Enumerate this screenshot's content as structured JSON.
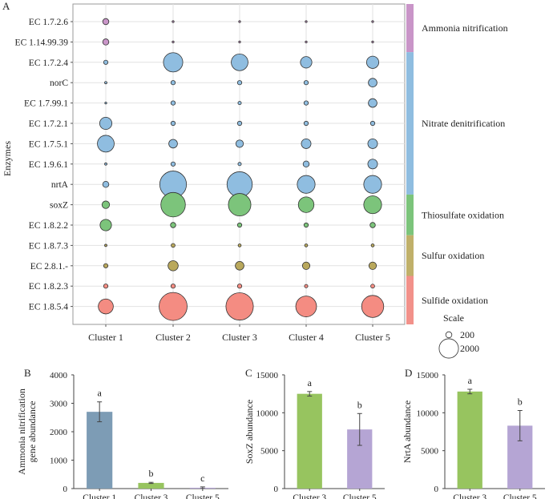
{
  "chart_data": [
    {
      "type": "scatter",
      "panel": "A",
      "ylabel": "Enzymes",
      "clusters": [
        "Cluster 1",
        "Cluster 2",
        "Cluster 3",
        "Cluster 4",
        "Cluster 5"
      ],
      "enzymes": [
        "EC 1.7.2.6",
        "EC 1.14.99.39",
        "EC 1.7.2.4",
        "norC",
        "EC 1.7.99.1",
        "EC 1.7.2.1",
        "EC 1.7.5.1",
        "EC 1.9.6.1",
        "nrtA",
        "soxZ",
        "EC 1.8.2.2",
        "EC 1.8.7.3",
        "EC 2.8.1.-",
        "EC 1.8.2.3",
        "EC 1.8.5.4"
      ],
      "values": [
        [
          200,
          20,
          10,
          3,
          3
        ],
        [
          200,
          20,
          10,
          3,
          3
        ],
        [
          100,
          2000,
          1500,
          700,
          800
        ],
        [
          30,
          100,
          100,
          100,
          400
        ],
        [
          20,
          100,
          60,
          100,
          400
        ],
        [
          800,
          100,
          100,
          100,
          100
        ],
        [
          1500,
          400,
          300,
          500,
          500
        ],
        [
          30,
          100,
          60,
          200,
          500
        ],
        [
          200,
          3800,
          3400,
          1700,
          1700
        ],
        [
          300,
          3200,
          2700,
          1300,
          1700
        ],
        [
          700,
          150,
          100,
          100,
          150
        ],
        [
          30,
          80,
          50,
          50,
          50
        ],
        [
          100,
          550,
          400,
          300,
          300
        ],
        [
          100,
          100,
          100,
          60,
          80
        ],
        [
          1200,
          4200,
          4000,
          2300,
          2600
        ]
      ],
      "groups": [
        {
          "label": "Ammonia nitrification",
          "from": 0,
          "to": 1,
          "color": "#c995c8"
        },
        {
          "label": "Nitrate denitrification",
          "from": 2,
          "to": 8,
          "color": "#8fbde0"
        },
        {
          "label": "Thiosulfate oxidation",
          "from": 9,
          "to": 10,
          "color": "#7cc47b"
        },
        {
          "label": "Sulfur oxidation",
          "from": 11,
          "to": 12,
          "color": "#c0b06a"
        },
        {
          "label": "Sulfide oxidation",
          "from": 13,
          "to": 14,
          "color": "#f2918a"
        }
      ],
      "row_colors": [
        "#c995c8",
        "#c995c8",
        "#8fbde0",
        "#8fbde0",
        "#8fbde0",
        "#8fbde0",
        "#8fbde0",
        "#8fbde0",
        "#8fbde0",
        "#7cc47b",
        "#7cc47b",
        "#b9a85c",
        "#b9a85c",
        "#f48c82",
        "#f48c82"
      ],
      "legend": {
        "title": "Scale",
        "entries": [
          {
            "label": "200",
            "value": 200
          },
          {
            "label": "2000",
            "value": 2000
          }
        ]
      }
    },
    {
      "type": "bar",
      "panel": "B",
      "categories": [
        "Cluster 1",
        "Cluster 3",
        "Cluster 5"
      ],
      "values": [
        2700,
        200,
        30
      ],
      "errors": [
        350,
        20,
        30
      ],
      "letters": [
        "a",
        "b",
        "c"
      ],
      "colors": [
        "#7d9cb5",
        "#97c45f",
        "#b5a5d4"
      ],
      "ylabel": "Ammonia nitrification gene abundance",
      "ylabel_lines": [
        "Ammonia nitrification",
        "gene abundance"
      ],
      "ylim": [
        0,
        4000
      ],
      "yticks": [
        0,
        1000,
        2000,
        3000,
        4000
      ]
    },
    {
      "type": "bar",
      "panel": "C",
      "categories": [
        "Cluster 3",
        "Cluster 5"
      ],
      "values": [
        12500,
        7800
      ],
      "errors": [
        300,
        2100
      ],
      "letters": [
        "a",
        "b"
      ],
      "colors": [
        "#97c45f",
        "#b5a5d4"
      ],
      "ylabel": "SoxZ abundance",
      "ylim": [
        0,
        15000
      ],
      "yticks": [
        0,
        5000,
        10000,
        15000
      ]
    },
    {
      "type": "bar",
      "panel": "D",
      "categories": [
        "Cluster 3",
        "Cluster 5"
      ],
      "values": [
        12800,
        8300
      ],
      "errors": [
        300,
        2000
      ],
      "letters": [
        "a",
        "b"
      ],
      "colors": [
        "#97c45f",
        "#b5a5d4"
      ],
      "ylabel": "NrtA abundance",
      "ylim": [
        0,
        15000
      ],
      "yticks": [
        0,
        5000,
        10000,
        15000
      ]
    }
  ]
}
